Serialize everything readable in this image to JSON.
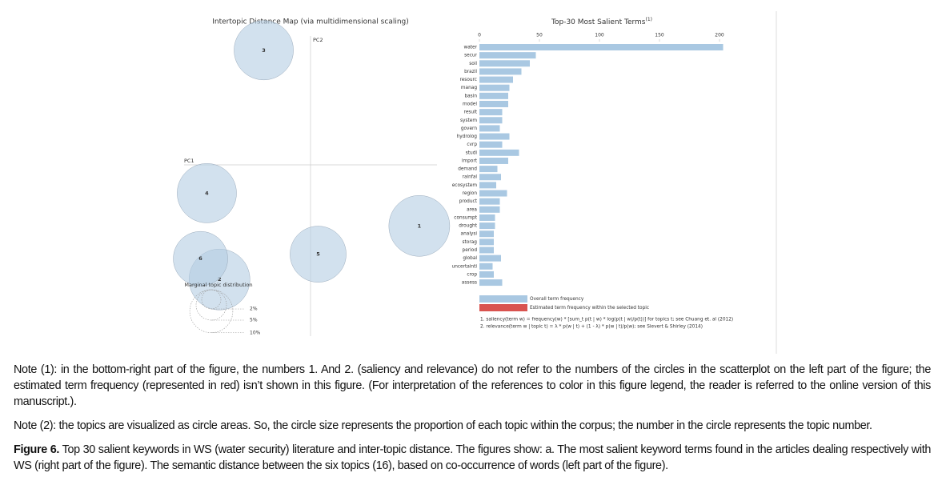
{
  "chart_data": [
    {
      "type": "scatter",
      "title": "Intertopic Distance Map (via multidimensional scaling)",
      "xlabel": "PC1",
      "ylabel": "PC2",
      "labels": [
        "1",
        "2",
        "3",
        "4",
        "5",
        "6"
      ],
      "x": [
        0.86,
        -0.72,
        -0.37,
        -0.82,
        0.06,
        -0.87
      ],
      "y": [
        -0.41,
        -0.77,
        0.77,
        -0.19,
        -0.6,
        -0.63
      ],
      "sizes": [
        20,
        20,
        19,
        19,
        17,
        16
      ],
      "xlim": [
        -1,
        1
      ],
      "ylim": [
        -1,
        1
      ],
      "color": "#b4cde3",
      "size_legend_title": "Marginal topic distribution",
      "size_ticks": [
        {
          "value": 2,
          "label": "2%"
        },
        {
          "value": 5,
          "label": "5%"
        },
        {
          "value": 10,
          "label": "10%"
        }
      ]
    },
    {
      "type": "bar",
      "orientation": "horizontal",
      "title": "Top-30 Most Salient Terms",
      "title_note": "(1)",
      "categories": [
        "water",
        "secur",
        "soil",
        "brazil",
        "resourc",
        "manag",
        "basin",
        "model",
        "result",
        "system",
        "govern",
        "hydrolog",
        "cvrp",
        "studi",
        "import",
        "demand",
        "rainfal",
        "ecosystem",
        "region",
        "product",
        "area",
        "consumpt",
        "drought",
        "analysi",
        "storag",
        "period",
        "global",
        "uncertainti",
        "crop",
        "assess"
      ],
      "values": [
        203,
        47,
        42,
        35,
        28,
        25,
        24,
        24,
        19,
        19,
        17,
        25,
        19,
        33,
        24,
        15,
        18,
        14,
        23,
        17,
        17,
        13,
        13,
        12,
        12,
        12,
        18,
        11,
        12,
        19
      ],
      "color": "#a9c8e2",
      "xlim": [
        0,
        200
      ],
      "xticks": [
        0,
        50,
        100,
        150,
        200
      ],
      "legend": [
        {
          "name": "Overall term frequency",
          "color": "#a9c8e2"
        },
        {
          "name": "Estimated term frequency within the selected topic",
          "color": "#d9534f"
        }
      ],
      "footnotes": [
        "1. saliency(term w) = frequency(w) * [sum_t p(t | w) * log(p(t | w)/p(t))] for topics t; see Chuang et. al (2012)",
        "2. relevance(term w | topic t) = λ * p(w | t) + (1 - λ) * p(w | t)/p(w); see Sievert & Shirley (2014)"
      ]
    }
  ],
  "notes": [
    "Note (1): in the bottom-right part of the figure, the numbers 1. And 2. (saliency and relevance) do not refer to the numbers of the circles in the scatterplot on the left part of the figure; the estimated term frequency (represented in red) isn’t shown in this figure. (For interpretation of the references to color in this figure legend, the reader is referred to the online version of this manuscript.).",
    "Note (2): the topics are visualized as circle areas. So, the circle size represents the proportion of each topic within the corpus; the number in the circle represents the topic number."
  ],
  "caption": {
    "label": "Figure 6.",
    "text": "Top 30 salient keywords in WS (water security) literature and inter-topic distance. The figures show: a. The most salient keyword terms found in the articles dealing respectively with WS (right part of the figure). The semantic distance between the six topics (16), based on co-occurrence of words (left part of the figure)."
  }
}
